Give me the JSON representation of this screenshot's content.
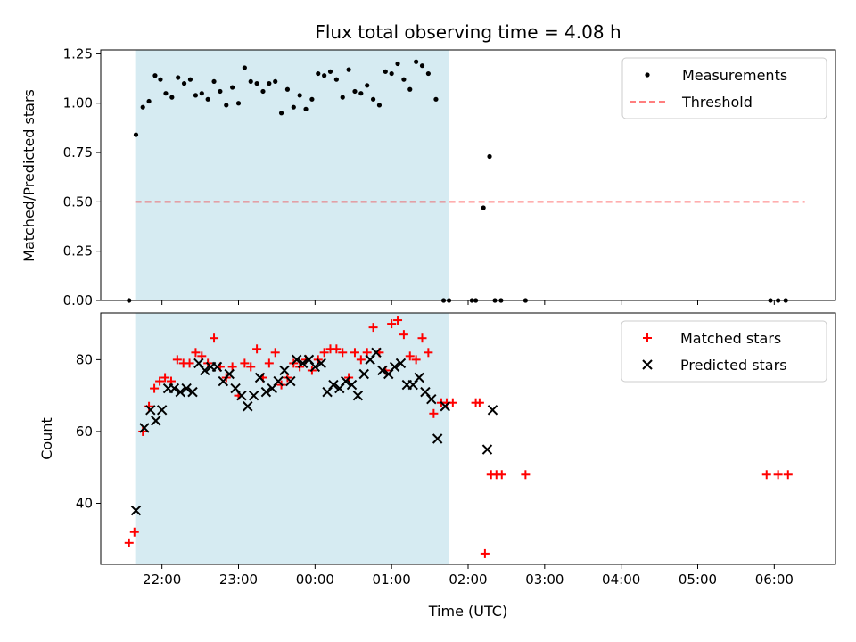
{
  "colors": {
    "shade": "#add8e6",
    "measurement": "#000000",
    "threshold": "#ff0000",
    "matched": "#ff0000",
    "predicted": "#000000"
  },
  "chart_data": [
    {
      "type": "scatter",
      "title": "Flux total observing time = 4.08 h",
      "xlabel": "",
      "ylabel": "Matched/Predicted stars",
      "xlim_hours": [
        21.2,
        30.8
      ],
      "ylim": [
        0,
        1.27
      ],
      "yticks": [
        0.0,
        0.25,
        0.5,
        0.75,
        1.0,
        1.25
      ],
      "ytick_labels": [
        "0.00",
        "0.25",
        "0.50",
        "0.75",
        "1.00",
        "1.25"
      ],
      "shaded_span": [
        21.65,
        25.75
      ],
      "threshold": {
        "y": 0.5,
        "x_range": [
          21.65,
          30.4
        ],
        "style": "dashed"
      },
      "legend": {
        "position": "top-right",
        "entries": [
          "Measurements",
          "Threshold"
        ]
      },
      "series": [
        {
          "name": "Measurements",
          "marker": "dot",
          "points": [
            [
              21.57,
              0.0
            ],
            [
              21.66,
              0.84
            ],
            [
              21.75,
              0.98
            ],
            [
              21.83,
              1.01
            ],
            [
              21.91,
              1.14
            ],
            [
              21.98,
              1.12
            ],
            [
              22.05,
              1.05
            ],
            [
              22.13,
              1.03
            ],
            [
              22.21,
              1.13
            ],
            [
              22.29,
              1.1
            ],
            [
              22.37,
              1.12
            ],
            [
              22.44,
              1.04
            ],
            [
              22.52,
              1.05
            ],
            [
              22.6,
              1.02
            ],
            [
              22.68,
              1.11
            ],
            [
              22.76,
              1.06
            ],
            [
              22.84,
              0.99
            ],
            [
              22.92,
              1.08
            ],
            [
              23.0,
              1.0
            ],
            [
              23.08,
              1.18
            ],
            [
              23.16,
              1.11
            ],
            [
              23.24,
              1.1
            ],
            [
              23.32,
              1.06
            ],
            [
              23.4,
              1.1
            ],
            [
              23.48,
              1.11
            ],
            [
              23.56,
              0.95
            ],
            [
              23.64,
              1.07
            ],
            [
              23.72,
              0.98
            ],
            [
              23.8,
              1.04
            ],
            [
              23.88,
              0.97
            ],
            [
              23.96,
              1.02
            ],
            [
              24.04,
              1.15
            ],
            [
              24.12,
              1.14
            ],
            [
              24.2,
              1.16
            ],
            [
              24.28,
              1.12
            ],
            [
              24.36,
              1.03
            ],
            [
              24.44,
              1.17
            ],
            [
              24.52,
              1.06
            ],
            [
              24.6,
              1.05
            ],
            [
              24.68,
              1.09
            ],
            [
              24.76,
              1.02
            ],
            [
              24.84,
              0.99
            ],
            [
              24.92,
              1.16
            ],
            [
              25.0,
              1.15
            ],
            [
              25.08,
              1.2
            ],
            [
              25.16,
              1.12
            ],
            [
              25.24,
              1.07
            ],
            [
              25.32,
              1.21
            ],
            [
              25.4,
              1.19
            ],
            [
              25.48,
              1.15
            ],
            [
              25.58,
              1.02
            ],
            [
              25.68,
              0.0
            ],
            [
              25.75,
              0.0
            ],
            [
              26.05,
              0.0
            ],
            [
              26.1,
              0.0
            ],
            [
              26.2,
              0.47
            ],
            [
              26.28,
              0.73
            ],
            [
              26.35,
              0.0
            ],
            [
              26.43,
              0.0
            ],
            [
              26.75,
              0.0
            ],
            [
              29.95,
              0.0
            ],
            [
              30.05,
              0.0
            ],
            [
              30.15,
              0.0
            ]
          ]
        }
      ]
    },
    {
      "type": "scatter",
      "title": "",
      "xlabel": "Time (UTC)",
      "ylabel": "Count",
      "xlim_hours": [
        21.2,
        30.8
      ],
      "ylim": [
        23,
        93
      ],
      "yticks": [
        40,
        60,
        80
      ],
      "ytick_labels": [
        "40",
        "60",
        "80"
      ],
      "xticks_hours": [
        22,
        23,
        24,
        25,
        26,
        27,
        28,
        29,
        30
      ],
      "xtick_labels": [
        "22:00",
        "23:00",
        "00:00",
        "01:00",
        "02:00",
        "03:00",
        "04:00",
        "05:00",
        "06:00"
      ],
      "shaded_span": [
        21.65,
        25.75
      ],
      "legend": {
        "position": "top-right",
        "entries": [
          "Matched stars",
          "Predicted stars"
        ]
      },
      "series": [
        {
          "name": "Matched stars",
          "marker": "plus",
          "points": [
            [
              21.57,
              29
            ],
            [
              21.64,
              32
            ],
            [
              21.75,
              60
            ],
            [
              21.83,
              67
            ],
            [
              21.9,
              72
            ],
            [
              21.97,
              74
            ],
            [
              22.04,
              75
            ],
            [
              22.12,
              74
            ],
            [
              22.2,
              80
            ],
            [
              22.28,
              79
            ],
            [
              22.36,
              79
            ],
            [
              22.44,
              82
            ],
            [
              22.52,
              81
            ],
            [
              22.6,
              79
            ],
            [
              22.68,
              86
            ],
            [
              22.76,
              78
            ],
            [
              22.84,
              75
            ],
            [
              22.92,
              78
            ],
            [
              23.0,
              70
            ],
            [
              23.08,
              79
            ],
            [
              23.16,
              78
            ],
            [
              23.24,
              83
            ],
            [
              23.32,
              75
            ],
            [
              23.4,
              79
            ],
            [
              23.48,
              82
            ],
            [
              23.56,
              73
            ],
            [
              23.64,
              75
            ],
            [
              23.72,
              79
            ],
            [
              23.8,
              78
            ],
            [
              23.88,
              80
            ],
            [
              23.96,
              77
            ],
            [
              24.04,
              80
            ],
            [
              24.12,
              82
            ],
            [
              24.2,
              83
            ],
            [
              24.28,
              83
            ],
            [
              24.36,
              82
            ],
            [
              24.44,
              75
            ],
            [
              24.52,
              82
            ],
            [
              24.6,
              80
            ],
            [
              24.68,
              82
            ],
            [
              24.76,
              89
            ],
            [
              24.84,
              82
            ],
            [
              24.92,
              77
            ],
            [
              25.0,
              90
            ],
            [
              25.08,
              91
            ],
            [
              25.16,
              87
            ],
            [
              25.24,
              81
            ],
            [
              25.32,
              80
            ],
            [
              25.4,
              86
            ],
            [
              25.48,
              82
            ],
            [
              25.55,
              65
            ],
            [
              25.65,
              68
            ],
            [
              25.72,
              68
            ],
            [
              25.8,
              68
            ],
            [
              26.1,
              68
            ],
            [
              26.15,
              68
            ],
            [
              26.22,
              26
            ],
            [
              26.3,
              48
            ],
            [
              26.37,
              48
            ],
            [
              26.44,
              48
            ],
            [
              26.75,
              48
            ],
            [
              29.9,
              48
            ],
            [
              30.05,
              48
            ],
            [
              30.18,
              48
            ]
          ]
        },
        {
          "name": "Predicted stars",
          "marker": "x",
          "points": [
            [
              21.66,
              38
            ],
            [
              21.77,
              61
            ],
            [
              21.85,
              66
            ],
            [
              21.92,
              63
            ],
            [
              22.0,
              66
            ],
            [
              22.08,
              72
            ],
            [
              22.16,
              72
            ],
            [
              22.24,
              71
            ],
            [
              22.32,
              72
            ],
            [
              22.4,
              71
            ],
            [
              22.48,
              79
            ],
            [
              22.56,
              77
            ],
            [
              22.64,
              78
            ],
            [
              22.72,
              78
            ],
            [
              22.8,
              74
            ],
            [
              22.88,
              76
            ],
            [
              22.96,
              72
            ],
            [
              23.04,
              70
            ],
            [
              23.12,
              67
            ],
            [
              23.2,
              70
            ],
            [
              23.28,
              75
            ],
            [
              23.36,
              71
            ],
            [
              23.44,
              72
            ],
            [
              23.52,
              74
            ],
            [
              23.6,
              77
            ],
            [
              23.68,
              74
            ],
            [
              23.76,
              80
            ],
            [
              23.84,
              79
            ],
            [
              23.92,
              80
            ],
            [
              24.0,
              78
            ],
            [
              24.08,
              79
            ],
            [
              24.16,
              71
            ],
            [
              24.24,
              73
            ],
            [
              24.32,
              72
            ],
            [
              24.4,
              74
            ],
            [
              24.48,
              73
            ],
            [
              24.56,
              70
            ],
            [
              24.64,
              76
            ],
            [
              24.72,
              80
            ],
            [
              24.8,
              82
            ],
            [
              24.88,
              77
            ],
            [
              24.96,
              76
            ],
            [
              25.04,
              78
            ],
            [
              25.12,
              79
            ],
            [
              25.2,
              73
            ],
            [
              25.28,
              73
            ],
            [
              25.36,
              75
            ],
            [
              25.44,
              71
            ],
            [
              25.52,
              69
            ],
            [
              25.6,
              58
            ],
            [
              25.7,
              67
            ],
            [
              26.25,
              55
            ],
            [
              26.32,
              66
            ]
          ]
        }
      ]
    }
  ]
}
